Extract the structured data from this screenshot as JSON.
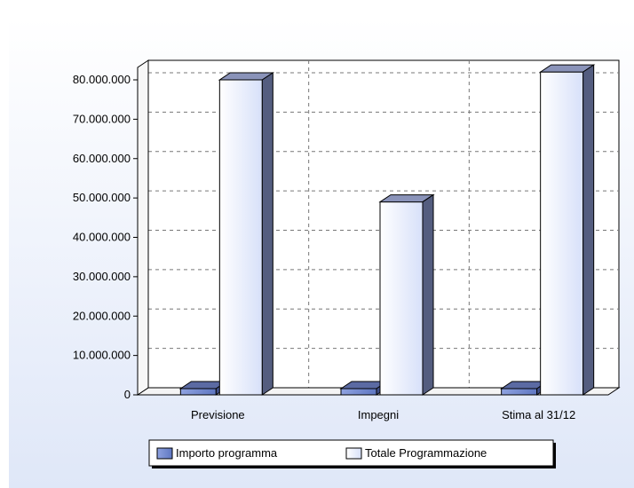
{
  "chart_data": {
    "type": "bar",
    "title": "",
    "xlabel": "",
    "ylabel": "",
    "categories": [
      "Previsione",
      "Impegni",
      "Stima al 31/12"
    ],
    "series": [
      {
        "name": "Importo programma",
        "values": [
          0,
          0,
          0
        ],
        "color": "#6f86cf"
      },
      {
        "name": "Totale Programmazione",
        "values": [
          80000000,
          49000000,
          82000000
        ],
        "color": "#e8eefc"
      }
    ],
    "ylim": [
      0,
      80000000
    ],
    "yticks": [
      0,
      10000000,
      20000000,
      30000000,
      40000000,
      50000000,
      60000000,
      70000000,
      80000000
    ],
    "ytick_labels": [
      "0",
      "10.000.000",
      "20.000.000",
      "30.000.000",
      "40.000.000",
      "50.000.000",
      "60.000.000",
      "70.000.000",
      "80.000.000"
    ],
    "grid": true,
    "legend_position": "bottom",
    "style": "3d"
  }
}
